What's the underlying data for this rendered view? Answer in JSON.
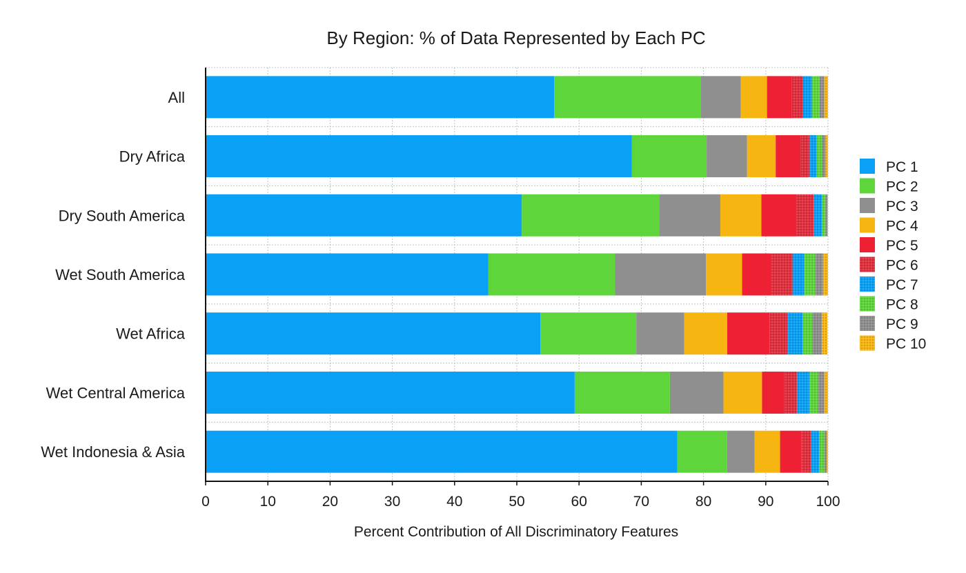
{
  "chart_data": {
    "type": "bar",
    "orientation": "horizontal",
    "stacked": true,
    "title": "By Region: % of Data Represented by Each PC",
    "xlabel": "Percent Contribution of All Discriminatory Features",
    "ylabel": "",
    "xlim": [
      0,
      100
    ],
    "xticks": [
      0,
      10,
      20,
      30,
      40,
      50,
      60,
      70,
      80,
      90,
      100
    ],
    "grid": true,
    "legend_position": "right",
    "categories": [
      "All",
      "Dry Africa",
      "Dry South America",
      "Wet South America",
      "Wet Africa",
      "Wet Central America",
      "Wet Indonesia & Asia"
    ],
    "series": [
      {
        "name": "PC 1",
        "color": "#0aa0f5",
        "pattern": "solid",
        "values": [
          56.0,
          68.5,
          50.8,
          45.4,
          53.8,
          59.3,
          75.8
        ]
      },
      {
        "name": "PC 2",
        "color": "#5ed63b",
        "pattern": "solid",
        "values": [
          23.6,
          12.0,
          22.1,
          20.4,
          15.4,
          15.3,
          8.0
        ]
      },
      {
        "name": "PC 3",
        "color": "#8f8f8f",
        "pattern": "solid",
        "values": [
          6.4,
          6.5,
          9.8,
          14.6,
          7.7,
          8.6,
          4.4
        ]
      },
      {
        "name": "PC 4",
        "color": "#f7b512",
        "pattern": "solid",
        "values": [
          4.2,
          4.6,
          6.6,
          5.8,
          6.9,
          6.2,
          4.1
        ]
      },
      {
        "name": "PC 5",
        "color": "#ee2033",
        "pattern": "solid",
        "values": [
          4.0,
          4.0,
          5.6,
          4.6,
          6.8,
          3.6,
          3.4
        ]
      },
      {
        "name": "PC 6",
        "color": "#e0303f",
        "pattern": "textured",
        "values": [
          1.8,
          1.4,
          2.8,
          3.5,
          2.9,
          2.0,
          1.6
        ]
      },
      {
        "name": "PC 7",
        "color": "#0aa0f5",
        "pattern": "textured",
        "values": [
          1.4,
          1.2,
          1.3,
          1.9,
          2.4,
          2.0,
          1.3
        ]
      },
      {
        "name": "PC 8",
        "color": "#5ed63b",
        "pattern": "textured",
        "values": [
          1.2,
          0.8,
          0.6,
          1.8,
          1.6,
          1.4,
          0.8
        ]
      },
      {
        "name": "PC 9",
        "color": "#8f8f8f",
        "pattern": "textured",
        "values": [
          0.8,
          0.6,
          0.3,
          1.2,
          1.5,
          1.0,
          0.4
        ]
      },
      {
        "name": "PC 10",
        "color": "#f7b512",
        "pattern": "textured",
        "values": [
          0.6,
          0.4,
          0.1,
          0.8,
          0.9,
          0.6,
          0.2
        ]
      }
    ]
  }
}
